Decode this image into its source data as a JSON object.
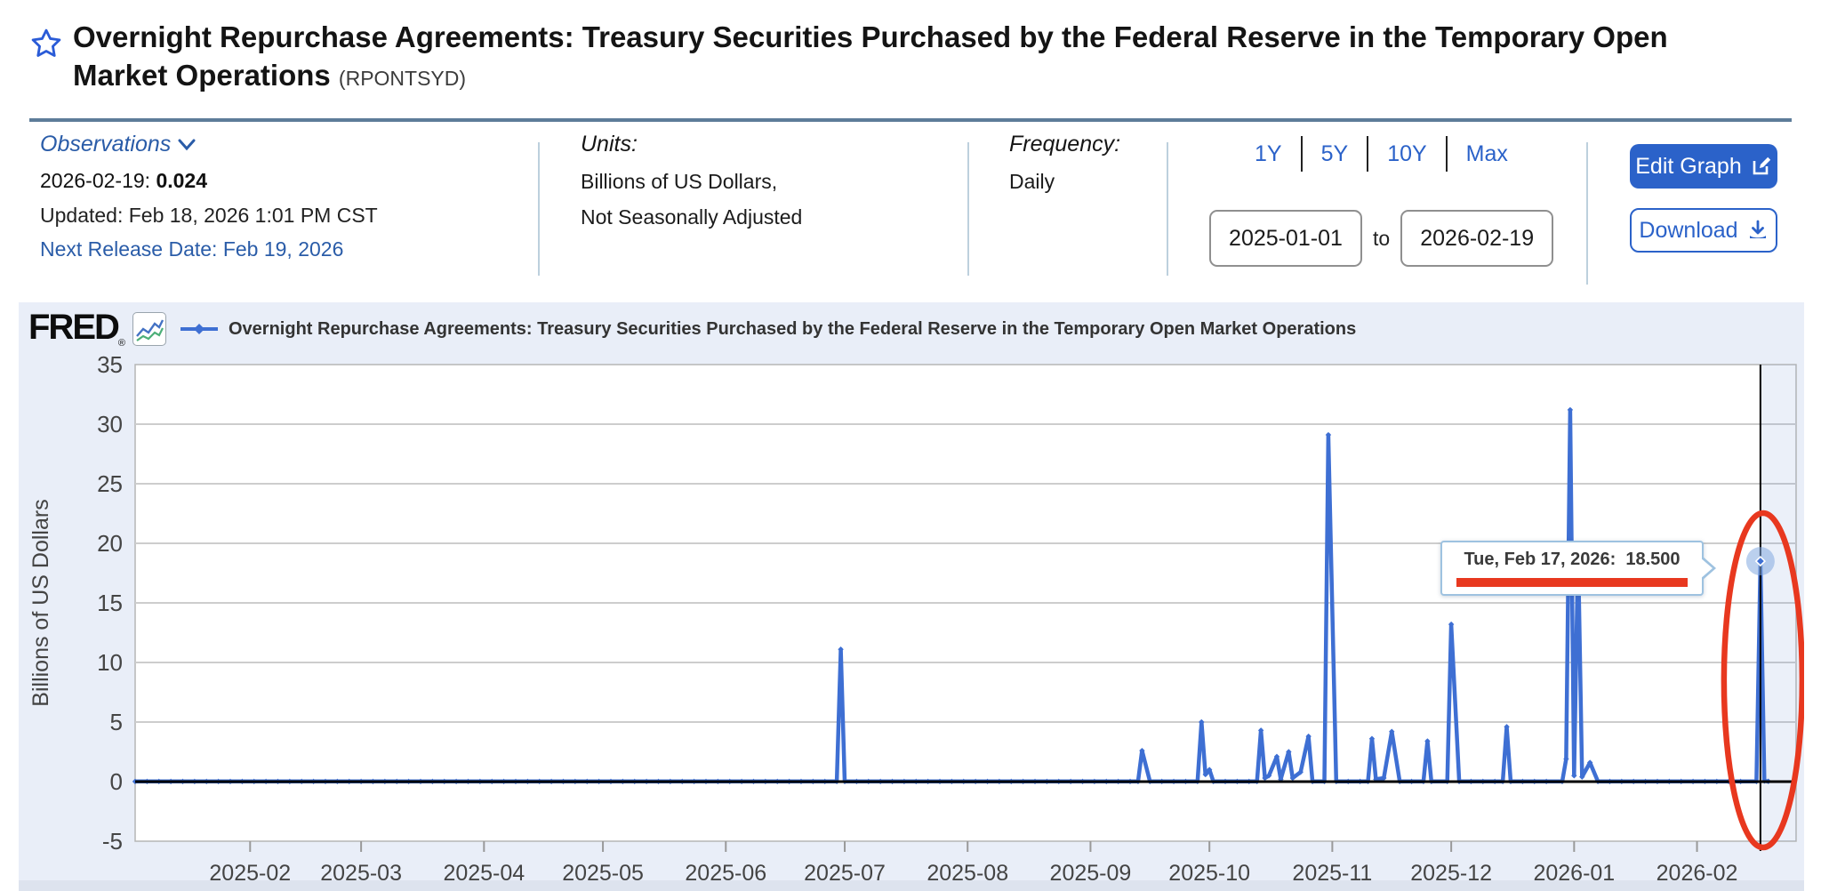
{
  "header": {
    "title": "Overnight Repurchase Agreements: Treasury Securities Purchased by the Federal Reserve in the Temporary Open Market Operations",
    "symbol": "(RPONTSYD)"
  },
  "observations": {
    "label": "Observations",
    "latest_label": "2026-02-19:",
    "latest_value": "0.024",
    "updated": "Updated: Feb 18, 2026 1:01 PM CST",
    "next_release": "Next Release Date: Feb 19, 2026"
  },
  "units": {
    "label": "Units:",
    "line1": "Billions of US Dollars,",
    "line2": "Not Seasonally Adjusted"
  },
  "frequency": {
    "label": "Frequency:",
    "value": "Daily"
  },
  "range": {
    "p1y": "1Y",
    "p5y": "5Y",
    "p10y": "10Y",
    "pmax": "Max",
    "start": "2025-01-01",
    "to": "to",
    "end": "2026-02-19"
  },
  "actions": {
    "edit": "Edit Graph",
    "download": "Download"
  },
  "chart": {
    "brand": "FRED",
    "legend_title": "Overnight Repurchase Agreements: Treasury Securities Purchased by the Federal Reserve in the Temporary Open Market Operations"
  },
  "tooltip": {
    "label": "Tue, Feb 17, 2026:",
    "value": "18.500"
  },
  "colors": {
    "line_blue": "#3e6fd3",
    "annotation_red": "#e8381f",
    "accent_blue": "#2b62c9",
    "grid": "#cdcdcd",
    "zero_axis": "#000000",
    "tick_text": "#444444"
  },
  "chart_data": {
    "type": "line",
    "title": "Overnight Repurchase Agreements: Treasury Securities Purchased by the Federal Reserve in the Temporary Open Market Operations",
    "xlabel": "",
    "ylabel": "Billions of US Dollars",
    "ylim": [
      -5,
      35
    ],
    "yticks": [
      35,
      30,
      25,
      20,
      15,
      10,
      5,
      0,
      -5
    ],
    "x_unit": "days since 2025-01-01",
    "x_range_days": [
      2,
      421
    ],
    "month_ticks": [
      {
        "day": 31,
        "label": "2025-02"
      },
      {
        "day": 59,
        "label": "2025-03"
      },
      {
        "day": 90,
        "label": "2025-04"
      },
      {
        "day": 120,
        "label": "2025-05"
      },
      {
        "day": 151,
        "label": "2025-06"
      },
      {
        "day": 181,
        "label": "2025-07"
      },
      {
        "day": 212,
        "label": "2025-08"
      },
      {
        "day": 243,
        "label": "2025-09"
      },
      {
        "day": 273,
        "label": "2025-10"
      },
      {
        "day": 304,
        "label": "2025-11"
      },
      {
        "day": 334,
        "label": "2025-12"
      },
      {
        "day": 365,
        "label": "2026-01"
      },
      {
        "day": 396,
        "label": "2026-02"
      }
    ],
    "baseline_value": 0.013,
    "points": [
      [
        2,
        0.013
      ],
      [
        179,
        0.013
      ],
      [
        180,
        11.1
      ],
      [
        181,
        0.013
      ],
      [
        255,
        0.013
      ],
      [
        256,
        2.6
      ],
      [
        258,
        0.013
      ],
      [
        270,
        0.013
      ],
      [
        271,
        5.0
      ],
      [
        272,
        0.6
      ],
      [
        273,
        1.0
      ],
      [
        274,
        0.013
      ],
      [
        285,
        0.013
      ],
      [
        286,
        4.3
      ],
      [
        287,
        0.3
      ],
      [
        288,
        0.5
      ],
      [
        290,
        2.1
      ],
      [
        291,
        0.2
      ],
      [
        293,
        2.5
      ],
      [
        294,
        0.3
      ],
      [
        296,
        0.8
      ],
      [
        298,
        3.8
      ],
      [
        299,
        0.013
      ],
      [
        302,
        0.013
      ],
      [
        303,
        29.1
      ],
      [
        305,
        0.013
      ],
      [
        313,
        0.013
      ],
      [
        314,
        3.6
      ],
      [
        315,
        0.2
      ],
      [
        317,
        0.3
      ],
      [
        319,
        4.2
      ],
      [
        321,
        0.013
      ],
      [
        327,
        0.013
      ],
      [
        328,
        3.4
      ],
      [
        329,
        0.013
      ],
      [
        333,
        0.013
      ],
      [
        334,
        13.2
      ],
      [
        336,
        0.013
      ],
      [
        347,
        0.013
      ],
      [
        348,
        4.6
      ],
      [
        349,
        0.013
      ],
      [
        362,
        0.013
      ],
      [
        363,
        1.9
      ],
      [
        364,
        31.2
      ],
      [
        365,
        0.5
      ],
      [
        366,
        19.5
      ],
      [
        367,
        0.4
      ],
      [
        369,
        1.6
      ],
      [
        371,
        0.013
      ],
      [
        411,
        0.013
      ],
      [
        412,
        18.5
      ],
      [
        413,
        0.055
      ],
      [
        414,
        0.024
      ]
    ],
    "highlight": {
      "day": 412,
      "value": 18.5,
      "tooltip_text": "Tue, Feb 17, 2026:  18.500"
    },
    "annotation": "red ellipse circling final spike (Feb 17, 2026 = 18.5)",
    "legend_position": "top",
    "grid": true
  }
}
